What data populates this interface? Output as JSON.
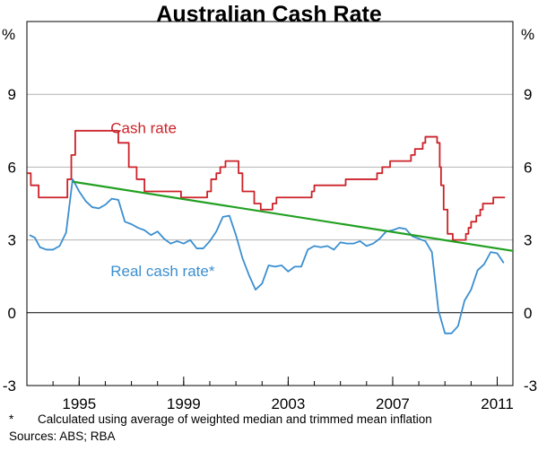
{
  "chart_data": {
    "type": "line",
    "title": "Australian Cash Rate",
    "left_unit": "%",
    "right_unit": "%",
    "xlim": [
      1993.0,
      2011.6
    ],
    "ylim": [
      -3,
      12
    ],
    "y_ticks": [
      -3,
      0,
      3,
      6,
      9
    ],
    "x_ticks": [
      1995,
      1999,
      2003,
      2007,
      2011
    ],
    "grid": true,
    "series": [
      {
        "name": "Cash rate",
        "color": "#cc2229",
        "step": true,
        "points": [
          [
            1993.0,
            5.75
          ],
          [
            1993.15,
            5.25
          ],
          [
            1993.45,
            4.75
          ],
          [
            1994.55,
            5.5
          ],
          [
            1994.7,
            6.5
          ],
          [
            1994.85,
            7.5
          ],
          [
            1996.5,
            7.0
          ],
          [
            1996.9,
            6.0
          ],
          [
            1997.2,
            5.5
          ],
          [
            1997.5,
            5.0
          ],
          [
            1998.9,
            4.75
          ],
          [
            1999.9,
            5.0
          ],
          [
            2000.05,
            5.5
          ],
          [
            2000.25,
            5.75
          ],
          [
            2000.4,
            6.0
          ],
          [
            2000.6,
            6.25
          ],
          [
            2001.1,
            5.75
          ],
          [
            2001.25,
            5.0
          ],
          [
            2001.7,
            4.5
          ],
          [
            2001.95,
            4.25
          ],
          [
            2002.4,
            4.5
          ],
          [
            2002.55,
            4.75
          ],
          [
            2003.9,
            5.0
          ],
          [
            2004.0,
            5.25
          ],
          [
            2005.2,
            5.5
          ],
          [
            2006.4,
            5.75
          ],
          [
            2006.6,
            6.0
          ],
          [
            2006.9,
            6.25
          ],
          [
            2007.7,
            6.5
          ],
          [
            2007.85,
            6.75
          ],
          [
            2008.15,
            7.0
          ],
          [
            2008.25,
            7.25
          ],
          [
            2008.7,
            7.0
          ],
          [
            2008.8,
            6.0
          ],
          [
            2008.85,
            5.25
          ],
          [
            2008.95,
            4.25
          ],
          [
            2009.1,
            3.25
          ],
          [
            2009.3,
            3.0
          ],
          [
            2009.8,
            3.25
          ],
          [
            2009.9,
            3.5
          ],
          [
            2010.0,
            3.75
          ],
          [
            2010.2,
            4.0
          ],
          [
            2010.35,
            4.25
          ],
          [
            2010.45,
            4.5
          ],
          [
            2010.85,
            4.75
          ],
          [
            2011.3,
            4.75
          ]
        ]
      },
      {
        "name": "Real cash rate*",
        "color": "#3b8fd0",
        "step": false,
        "points": [
          [
            1993.1,
            3.2
          ],
          [
            1993.3,
            3.1
          ],
          [
            1993.5,
            2.7
          ],
          [
            1993.75,
            2.6
          ],
          [
            1994.0,
            2.6
          ],
          [
            1994.25,
            2.75
          ],
          [
            1994.5,
            3.3
          ],
          [
            1994.75,
            5.5
          ],
          [
            1995.0,
            5.0
          ],
          [
            1995.25,
            4.6
          ],
          [
            1995.5,
            4.35
          ],
          [
            1995.75,
            4.3
          ],
          [
            1996.0,
            4.45
          ],
          [
            1996.25,
            4.7
          ],
          [
            1996.5,
            4.65
          ],
          [
            1996.75,
            3.75
          ],
          [
            1997.0,
            3.65
          ],
          [
            1997.25,
            3.5
          ],
          [
            1997.5,
            3.4
          ],
          [
            1997.75,
            3.2
          ],
          [
            1998.0,
            3.35
          ],
          [
            1998.25,
            3.05
          ],
          [
            1998.5,
            2.85
          ],
          [
            1998.75,
            2.95
          ],
          [
            1999.0,
            2.85
          ],
          [
            1999.25,
            3.0
          ],
          [
            1999.5,
            2.65
          ],
          [
            1999.75,
            2.65
          ],
          [
            2000.0,
            2.95
          ],
          [
            2000.25,
            3.35
          ],
          [
            2000.5,
            3.95
          ],
          [
            2000.75,
            4.0
          ],
          [
            2001.0,
            3.2
          ],
          [
            2001.25,
            2.25
          ],
          [
            2001.5,
            1.55
          ],
          [
            2001.75,
            0.95
          ],
          [
            2002.0,
            1.2
          ],
          [
            2002.25,
            1.95
          ],
          [
            2002.5,
            1.9
          ],
          [
            2002.75,
            1.95
          ],
          [
            2003.0,
            1.7
          ],
          [
            2003.25,
            1.9
          ],
          [
            2003.5,
            1.9
          ],
          [
            2003.75,
            2.6
          ],
          [
            2004.0,
            2.75
          ],
          [
            2004.25,
            2.7
          ],
          [
            2004.5,
            2.75
          ],
          [
            2004.75,
            2.6
          ],
          [
            2005.0,
            2.9
          ],
          [
            2005.25,
            2.85
          ],
          [
            2005.5,
            2.85
          ],
          [
            2005.75,
            2.95
          ],
          [
            2006.0,
            2.75
          ],
          [
            2006.25,
            2.85
          ],
          [
            2006.5,
            3.05
          ],
          [
            2006.75,
            3.35
          ],
          [
            2007.0,
            3.4
          ],
          [
            2007.25,
            3.5
          ],
          [
            2007.5,
            3.45
          ],
          [
            2007.75,
            3.15
          ],
          [
            2008.0,
            3.05
          ],
          [
            2008.25,
            2.95
          ],
          [
            2008.5,
            2.5
          ],
          [
            2008.75,
            0.1
          ],
          [
            2009.0,
            -0.85
          ],
          [
            2009.25,
            -0.85
          ],
          [
            2009.5,
            -0.55
          ],
          [
            2009.75,
            0.5
          ],
          [
            2010.0,
            0.95
          ],
          [
            2010.25,
            1.75
          ],
          [
            2010.5,
            2.0
          ],
          [
            2010.75,
            2.5
          ],
          [
            2011.0,
            2.45
          ],
          [
            2011.25,
            2.05
          ]
        ]
      },
      {
        "color": "#22a022",
        "step": false,
        "points": [
          [
            1994.75,
            5.4
          ],
          [
            2011.6,
            2.55
          ]
        ]
      }
    ],
    "annotations": [
      {
        "text": "Cash rate",
        "x": 1996.2,
        "y": 7.4,
        "color": "#cc2229"
      },
      {
        "text": "Real cash rate*",
        "x": 1996.2,
        "y": 1.5,
        "color": "#3b8fd0"
      }
    ]
  },
  "footnote": {
    "marker": "*",
    "text": "Calculated using average of weighted median and trimmed mean inflation"
  },
  "sources": "Sources: ABS; RBA"
}
